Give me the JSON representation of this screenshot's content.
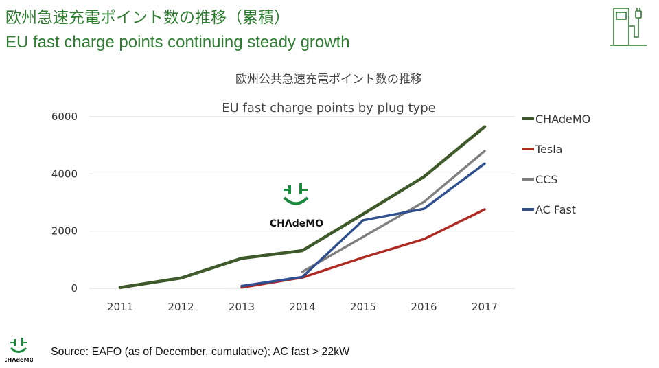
{
  "slide": {
    "title_ja": "欧州急速充電ポイント数の推移（累積）",
    "title_en": "EU fast charge points continuing steady growth",
    "source": "Source: EAFO (as of December, cumulative); AC fast > 22kW"
  },
  "icons": {
    "charger": "ev-charger-icon",
    "logo": "chademo-logo"
  },
  "logo_text": "CHΛdeMO",
  "chart_data": {
    "type": "line",
    "title": "欧州公共急速充電ポイント数の推移",
    "subtitle": "EU fast charge points by plug type",
    "xlabel": "",
    "ylabel": "",
    "categories": [
      "2011",
      "2012",
      "2013",
      "2014",
      "2015",
      "2016",
      "2017"
    ],
    "ylim": [
      0,
      6000
    ],
    "yticks": [
      0,
      2000,
      4000,
      6000
    ],
    "grid": true,
    "legend_position": "right",
    "series": [
      {
        "name": "CHAdeMO",
        "color": "#3f5a2a",
        "values": [
          30,
          360,
          1050,
          1320,
          2600,
          3900,
          5650
        ]
      },
      {
        "name": "Tesla",
        "color": "#b02a24",
        "values": [
          null,
          null,
          30,
          380,
          1080,
          1720,
          2760
        ]
      },
      {
        "name": "CCS",
        "color": "#7f7f7f",
        "values": [
          null,
          null,
          null,
          580,
          1800,
          3020,
          4800
        ]
      },
      {
        "name": "AC Fast",
        "color": "#2f4f8f",
        "values": [
          null,
          null,
          80,
          400,
          2380,
          2780,
          4360
        ]
      }
    ]
  }
}
